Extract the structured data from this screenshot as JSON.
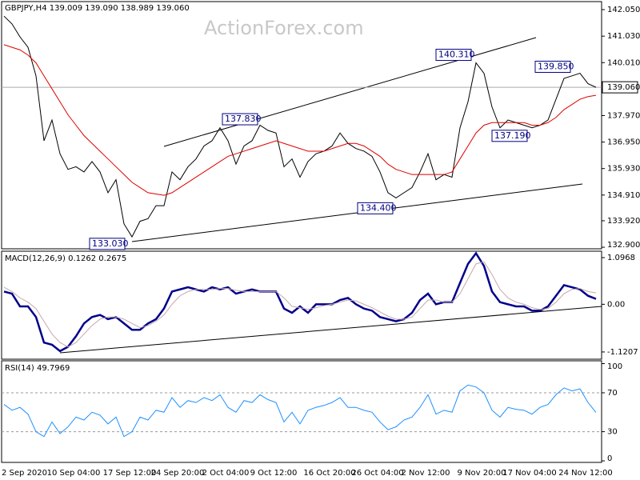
{
  "chart_data": [
    {
      "type": "line",
      "title": "GBPJPY,H4  139.009 139.090 138.989 139.060",
      "watermark": "ActionForex.com",
      "ylim": [
        132.84,
        142.36
      ],
      "yticks": [
        {
          "value": 142.05,
          "label": "142.050"
        },
        {
          "value": 141.03,
          "label": "141.030"
        },
        {
          "value": 140.01,
          "label": "140.010"
        },
        {
          "value": 137.97,
          "label": "137.970"
        },
        {
          "value": 136.95,
          "label": "136.950"
        },
        {
          "value": 135.93,
          "label": "135.930"
        },
        {
          "value": 134.91,
          "label": "134.910"
        },
        {
          "value": 133.92,
          "label": "133.920"
        },
        {
          "value": 132.9,
          "label": "132.900"
        }
      ],
      "last_price": {
        "value": 139.06,
        "label": "139.060"
      },
      "annotations": [
        {
          "value": 133.03,
          "label": "133.030"
        },
        {
          "value": 137.83,
          "label": "137.830"
        },
        {
          "value": 134.4,
          "label": "134.400"
        },
        {
          "value": 140.31,
          "label": "140.310"
        },
        {
          "value": 137.19,
          "label": "137.190"
        },
        {
          "value": 139.85,
          "label": "139.850"
        }
      ],
      "series": [
        {
          "color": "#000000",
          "values": [
            141.8,
            141.5,
            141.0,
            140.6,
            139.5,
            137.0,
            137.8,
            136.5,
            135.9,
            136.0,
            135.8,
            136.2,
            135.8,
            135.0,
            135.5,
            133.8,
            133.3,
            133.9,
            134.0,
            134.5,
            134.5,
            135.8,
            135.5,
            136.0,
            136.3,
            136.8,
            137.0,
            137.5,
            137.0,
            136.1,
            136.8,
            137.0,
            137.6,
            137.4,
            137.3,
            136.0,
            136.3,
            135.6,
            136.2,
            136.5,
            136.6,
            136.8,
            137.3,
            136.9,
            136.7,
            136.6,
            136.4,
            135.8,
            135.0,
            134.8,
            135.0,
            135.2,
            135.8,
            136.5,
            135.5,
            135.7,
            135.6,
            137.5,
            138.5,
            140.0,
            139.6,
            138.3,
            137.5,
            137.8,
            137.7,
            137.6,
            137.5,
            137.6,
            137.8,
            138.6,
            139.4,
            139.5,
            139.6,
            139.2,
            139.06
          ]
        },
        {
          "color": "#e00000",
          "values": [
            140.7,
            140.6,
            140.5,
            140.3,
            140.0,
            139.5,
            139.0,
            138.5,
            138.0,
            137.6,
            137.2,
            136.9,
            136.6,
            136.3,
            136.0,
            135.7,
            135.4,
            135.2,
            135.0,
            134.95,
            134.9,
            135.0,
            135.2,
            135.4,
            135.6,
            135.8,
            136.0,
            136.2,
            136.4,
            136.5,
            136.6,
            136.7,
            136.8,
            136.9,
            137.0,
            136.9,
            136.8,
            136.7,
            136.6,
            136.6,
            136.6,
            136.7,
            136.8,
            136.9,
            136.9,
            136.8,
            136.6,
            136.4,
            136.1,
            135.9,
            135.8,
            135.7,
            135.7,
            135.7,
            135.7,
            135.7,
            135.8,
            136.3,
            136.8,
            137.3,
            137.6,
            137.7,
            137.7,
            137.7,
            137.7,
            137.7,
            137.6,
            137.6,
            137.7,
            137.9,
            138.2,
            138.4,
            138.6,
            138.7,
            138.75
          ]
        }
      ]
    },
    {
      "type": "line",
      "title": "MACD(12,26,9) 0.1262 0.2675",
      "ylim": [
        -1.291,
        1.248
      ],
      "yticks": [
        1.0968,
        {
          "value": 0,
          "label": "0.00"
        },
        -1.1207
      ],
      "series": [
        {
          "color": "#00008b",
          "values": [
            0.3,
            0.25,
            -0.05,
            -0.05,
            -0.3,
            -0.9,
            -0.95,
            -1.1,
            -1.0,
            -0.75,
            -0.45,
            -0.3,
            -0.25,
            -0.35,
            -0.3,
            -0.45,
            -0.6,
            -0.6,
            -0.45,
            -0.35,
            -0.1,
            0.3,
            0.35,
            0.4,
            0.35,
            0.3,
            0.4,
            0.35,
            0.4,
            0.25,
            0.3,
            0.35,
            0.3,
            0.3,
            0.3,
            -0.1,
            -0.2,
            -0.05,
            -0.2,
            0.0,
            0.0,
            0.0,
            0.1,
            0.15,
            0.0,
            -0.1,
            -0.15,
            -0.3,
            -0.35,
            -0.4,
            -0.35,
            -0.2,
            0.1,
            0.25,
            0.0,
            0.05,
            0.05,
            0.5,
            0.95,
            1.2,
            0.9,
            0.3,
            0.05,
            0.0,
            -0.05,
            -0.05,
            -0.15,
            -0.15,
            -0.05,
            0.2,
            0.45,
            0.4,
            0.35,
            0.2,
            0.1262
          ]
        },
        {
          "color": "#c8a8a8",
          "values": [
            0.4,
            0.3,
            0.15,
            0.05,
            -0.1,
            -0.4,
            -0.7,
            -0.9,
            -1.0,
            -0.9,
            -0.7,
            -0.5,
            -0.35,
            -0.3,
            -0.3,
            -0.35,
            -0.45,
            -0.55,
            -0.5,
            -0.4,
            -0.25,
            0.0,
            0.2,
            0.3,
            0.35,
            0.35,
            0.35,
            0.37,
            0.37,
            0.33,
            0.3,
            0.3,
            0.3,
            0.3,
            0.3,
            0.15,
            -0.05,
            -0.08,
            -0.12,
            -0.08,
            -0.03,
            0.0,
            0.05,
            0.1,
            0.08,
            0.0,
            -0.08,
            -0.18,
            -0.28,
            -0.35,
            -0.35,
            -0.3,
            -0.1,
            0.1,
            0.1,
            0.05,
            0.05,
            0.25,
            0.6,
            0.95,
            1.0,
            0.7,
            0.35,
            0.15,
            0.05,
            0.0,
            -0.08,
            -0.12,
            -0.1,
            0.05,
            0.25,
            0.35,
            0.37,
            0.3,
            0.2675
          ]
        }
      ]
    },
    {
      "type": "line",
      "title": "RSI(14) 49.7969",
      "ylim": [
        -1.6,
        102.9
      ],
      "yticks": [
        100,
        70,
        30,
        0
      ],
      "levels": [
        70,
        30
      ],
      "categories": [
        "2 Sep 2020",
        null,
        null,
        null,
        null,
        null,
        null,
        null,
        null,
        "10 Sep 04:00",
        null,
        null,
        null,
        null,
        null,
        null,
        "17 Sep 12:00",
        null,
        null,
        null,
        null,
        null,
        "24 Sep 20:00",
        null,
        null,
        null,
        null,
        null,
        "2 Oct 04:00",
        null,
        null,
        null,
        null,
        null,
        "9 Oct 12:00",
        null,
        null,
        null,
        null,
        null,
        null,
        "16 Oct 20:00",
        null,
        null,
        null,
        null,
        null,
        "26 Oct 04:00",
        null,
        null,
        null,
        null,
        null,
        "2 Nov 12:00",
        null,
        null,
        null,
        null,
        null,
        null,
        "9 Nov 20:00",
        null,
        null,
        null,
        null,
        null,
        "17 Nov 04:00",
        null,
        null,
        null,
        null,
        null,
        null,
        "24 Nov 12:00",
        null
      ],
      "series": [
        {
          "color": "#1e90ff",
          "values": [
            58,
            52,
            55,
            48,
            30,
            25,
            40,
            28,
            35,
            45,
            42,
            50,
            47,
            38,
            45,
            25,
            30,
            45,
            42,
            52,
            50,
            65,
            55,
            62,
            60,
            65,
            62,
            68,
            55,
            50,
            62,
            60,
            68,
            63,
            60,
            40,
            50,
            38,
            52,
            55,
            57,
            60,
            65,
            55,
            55,
            52,
            50,
            40,
            32,
            35,
            42,
            45,
            55,
            68,
            48,
            52,
            50,
            72,
            78,
            76,
            70,
            52,
            45,
            55,
            53,
            52,
            48,
            55,
            58,
            68,
            75,
            72,
            74,
            60,
            49.7969
          ]
        }
      ]
    }
  ]
}
